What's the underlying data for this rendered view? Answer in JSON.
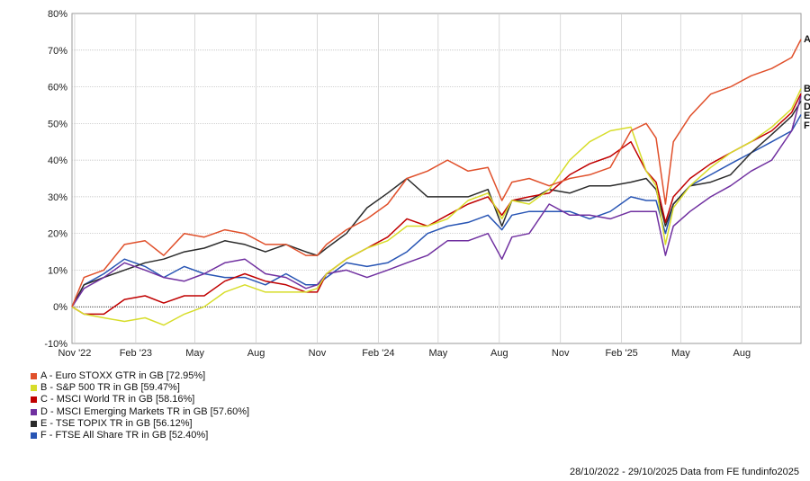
{
  "chart_data": {
    "type": "line",
    "title": "",
    "xlabel": "",
    "ylabel": "",
    "ylim": [
      -10,
      80
    ],
    "y_ticks": [
      -10,
      0,
      10,
      20,
      30,
      40,
      50,
      60,
      70,
      80
    ],
    "y_tick_labels": [
      "-10%",
      "0%",
      "10%",
      "20%",
      "30%",
      "40%",
      "50%",
      "60%",
      "70%",
      "80%"
    ],
    "x_range": [
      "2022-10-28",
      "2025-10-29"
    ],
    "x_ticks": [
      {
        "date": "2022-11-01",
        "label": "Nov '22"
      },
      {
        "date": "2023-02-01",
        "label": "Feb '23"
      },
      {
        "date": "2023-05-01",
        "label": "May"
      },
      {
        "date": "2023-08-01",
        "label": "Aug"
      },
      {
        "date": "2023-11-01",
        "label": "Nov"
      },
      {
        "date": "2024-02-01",
        "label": "Feb '24"
      },
      {
        "date": "2024-05-01",
        "label": "May"
      },
      {
        "date": "2024-08-01",
        "label": "Aug"
      },
      {
        "date": "2024-11-01",
        "label": "Nov"
      },
      {
        "date": "2025-02-01",
        "label": "Feb '25"
      },
      {
        "date": "2025-05-01",
        "label": "May"
      },
      {
        "date": "2025-08-01",
        "label": "Aug"
      }
    ],
    "grid": true,
    "zero_line": "dotted",
    "legend_position": "bottom-left",
    "series": [
      {
        "key": "A",
        "name": "A - Euro STOXX GTR in GB [72.95%]",
        "color": "#e0502b",
        "points": [
          [
            "2022-10-28",
            0
          ],
          [
            "2022-11-15",
            8
          ],
          [
            "2022-12-15",
            10
          ],
          [
            "2023-01-15",
            17
          ],
          [
            "2023-02-15",
            18
          ],
          [
            "2023-03-15",
            14
          ],
          [
            "2023-04-15",
            20
          ],
          [
            "2023-05-15",
            19
          ],
          [
            "2023-06-15",
            21
          ],
          [
            "2023-07-15",
            20
          ],
          [
            "2023-08-15",
            17
          ],
          [
            "2023-09-15",
            17
          ],
          [
            "2023-10-15",
            14
          ],
          [
            "2023-11-01",
            14
          ],
          [
            "2023-11-15",
            17
          ],
          [
            "2023-12-15",
            21
          ],
          [
            "2024-01-15",
            24
          ],
          [
            "2024-02-15",
            28
          ],
          [
            "2024-03-15",
            35
          ],
          [
            "2024-04-15",
            37
          ],
          [
            "2024-05-15",
            40
          ],
          [
            "2024-06-15",
            37
          ],
          [
            "2024-07-15",
            38
          ],
          [
            "2024-08-05",
            29
          ],
          [
            "2024-08-20",
            34
          ],
          [
            "2024-09-15",
            35
          ],
          [
            "2024-10-15",
            33
          ],
          [
            "2024-11-15",
            35
          ],
          [
            "2024-12-15",
            36
          ],
          [
            "2025-01-15",
            38
          ],
          [
            "2025-02-15",
            48
          ],
          [
            "2025-03-10",
            50
          ],
          [
            "2025-03-25",
            46
          ],
          [
            "2025-04-08",
            28
          ],
          [
            "2025-04-20",
            45
          ],
          [
            "2025-05-15",
            52
          ],
          [
            "2025-06-15",
            58
          ],
          [
            "2025-07-15",
            60
          ],
          [
            "2025-08-15",
            63
          ],
          [
            "2025-09-15",
            65
          ],
          [
            "2025-10-15",
            68
          ],
          [
            "2025-10-29",
            72.95
          ]
        ]
      },
      {
        "key": "B",
        "name": "B - S&P 500 TR in GB [59.47%]",
        "color": "#d7dd2a",
        "points": [
          [
            "2022-10-28",
            0
          ],
          [
            "2022-11-15",
            -2
          ],
          [
            "2022-12-15",
            -3
          ],
          [
            "2023-01-15",
            -4
          ],
          [
            "2023-02-15",
            -3
          ],
          [
            "2023-03-15",
            -5
          ],
          [
            "2023-04-15",
            -2
          ],
          [
            "2023-05-15",
            0
          ],
          [
            "2023-06-15",
            4
          ],
          [
            "2023-07-15",
            6
          ],
          [
            "2023-08-15",
            4
          ],
          [
            "2023-09-15",
            4
          ],
          [
            "2023-10-15",
            4
          ],
          [
            "2023-11-01",
            5
          ],
          [
            "2023-11-15",
            9
          ],
          [
            "2023-12-15",
            13
          ],
          [
            "2024-01-15",
            16
          ],
          [
            "2024-02-15",
            18
          ],
          [
            "2024-03-15",
            22
          ],
          [
            "2024-04-15",
            22
          ],
          [
            "2024-05-15",
            24
          ],
          [
            "2024-06-15",
            29
          ],
          [
            "2024-07-15",
            31
          ],
          [
            "2024-08-05",
            24
          ],
          [
            "2024-08-20",
            29
          ],
          [
            "2024-09-15",
            28
          ],
          [
            "2024-10-15",
            32
          ],
          [
            "2024-11-15",
            40
          ],
          [
            "2024-12-15",
            45
          ],
          [
            "2025-01-15",
            48
          ],
          [
            "2025-02-15",
            49
          ],
          [
            "2025-03-10",
            37
          ],
          [
            "2025-03-25",
            33
          ],
          [
            "2025-04-08",
            17
          ],
          [
            "2025-04-20",
            27
          ],
          [
            "2025-05-15",
            33
          ],
          [
            "2025-06-15",
            38
          ],
          [
            "2025-07-15",
            42
          ],
          [
            "2025-08-15",
            45
          ],
          [
            "2025-09-15",
            49
          ],
          [
            "2025-10-15",
            54
          ],
          [
            "2025-10-29",
            59.47
          ]
        ]
      },
      {
        "key": "C",
        "name": "C - MSCI World TR in GB [58.16%]",
        "color": "#c00000",
        "points": [
          [
            "2022-10-28",
            0
          ],
          [
            "2022-11-15",
            -2
          ],
          [
            "2022-12-15",
            -2
          ],
          [
            "2023-01-15",
            2
          ],
          [
            "2023-02-15",
            3
          ],
          [
            "2023-03-15",
            1
          ],
          [
            "2023-04-15",
            3
          ],
          [
            "2023-05-15",
            3
          ],
          [
            "2023-06-15",
            7
          ],
          [
            "2023-07-15",
            9
          ],
          [
            "2023-08-15",
            7
          ],
          [
            "2023-09-15",
            6
          ],
          [
            "2023-10-15",
            4
          ],
          [
            "2023-11-01",
            4
          ],
          [
            "2023-11-15",
            9
          ],
          [
            "2023-12-15",
            13
          ],
          [
            "2024-01-15",
            16
          ],
          [
            "2024-02-15",
            19
          ],
          [
            "2024-03-15",
            24
          ],
          [
            "2024-04-15",
            22
          ],
          [
            "2024-05-15",
            25
          ],
          [
            "2024-06-15",
            28
          ],
          [
            "2024-07-15",
            30
          ],
          [
            "2024-08-05",
            25
          ],
          [
            "2024-08-20",
            29
          ],
          [
            "2024-09-15",
            30
          ],
          [
            "2024-10-15",
            31
          ],
          [
            "2024-11-15",
            36
          ],
          [
            "2024-12-15",
            39
          ],
          [
            "2025-01-15",
            41
          ],
          [
            "2025-02-15",
            45
          ],
          [
            "2025-03-10",
            37
          ],
          [
            "2025-03-25",
            34
          ],
          [
            "2025-04-08",
            23
          ],
          [
            "2025-04-20",
            30
          ],
          [
            "2025-05-15",
            35
          ],
          [
            "2025-06-15",
            39
          ],
          [
            "2025-07-15",
            42
          ],
          [
            "2025-08-15",
            45
          ],
          [
            "2025-09-15",
            48
          ],
          [
            "2025-10-15",
            53
          ],
          [
            "2025-10-29",
            58.16
          ]
        ]
      },
      {
        "key": "D",
        "name": "D - MSCI Emerging Markets TR in GB [57.60%]",
        "color": "#7030a0",
        "points": [
          [
            "2022-10-28",
            0
          ],
          [
            "2022-11-15",
            5
          ],
          [
            "2022-12-15",
            8
          ],
          [
            "2023-01-15",
            12
          ],
          [
            "2023-02-15",
            10
          ],
          [
            "2023-03-15",
            8
          ],
          [
            "2023-04-15",
            7
          ],
          [
            "2023-05-15",
            9
          ],
          [
            "2023-06-15",
            12
          ],
          [
            "2023-07-15",
            13
          ],
          [
            "2023-08-15",
            9
          ],
          [
            "2023-09-15",
            8
          ],
          [
            "2023-10-15",
            5
          ],
          [
            "2023-11-01",
            6
          ],
          [
            "2023-11-15",
            9
          ],
          [
            "2023-12-15",
            10
          ],
          [
            "2024-01-15",
            8
          ],
          [
            "2024-02-15",
            10
          ],
          [
            "2024-03-15",
            12
          ],
          [
            "2024-04-15",
            14
          ],
          [
            "2024-05-15",
            18
          ],
          [
            "2024-06-15",
            18
          ],
          [
            "2024-07-15",
            20
          ],
          [
            "2024-08-05",
            13
          ],
          [
            "2024-08-20",
            19
          ],
          [
            "2024-09-15",
            20
          ],
          [
            "2024-10-15",
            28
          ],
          [
            "2024-11-15",
            25
          ],
          [
            "2024-12-15",
            25
          ],
          [
            "2025-01-15",
            24
          ],
          [
            "2025-02-15",
            26
          ],
          [
            "2025-03-10",
            26
          ],
          [
            "2025-03-25",
            26
          ],
          [
            "2025-04-08",
            14
          ],
          [
            "2025-04-20",
            22
          ],
          [
            "2025-05-15",
            26
          ],
          [
            "2025-06-15",
            30
          ],
          [
            "2025-07-15",
            33
          ],
          [
            "2025-08-15",
            37
          ],
          [
            "2025-09-15",
            40
          ],
          [
            "2025-10-15",
            48
          ],
          [
            "2025-10-29",
            57.6
          ]
        ]
      },
      {
        "key": "E",
        "name": "E - TSE TOPIX TR in GB [56.12%]",
        "color": "#2b2b2b",
        "points": [
          [
            "2022-10-28",
            0
          ],
          [
            "2022-11-15",
            6
          ],
          [
            "2022-12-15",
            8
          ],
          [
            "2023-01-15",
            10
          ],
          [
            "2023-02-15",
            12
          ],
          [
            "2023-03-15",
            13
          ],
          [
            "2023-04-15",
            15
          ],
          [
            "2023-05-15",
            16
          ],
          [
            "2023-06-15",
            18
          ],
          [
            "2023-07-15",
            17
          ],
          [
            "2023-08-15",
            15
          ],
          [
            "2023-09-15",
            17
          ],
          [
            "2023-10-15",
            15
          ],
          [
            "2023-11-01",
            14
          ],
          [
            "2023-11-15",
            16
          ],
          [
            "2023-12-15",
            20
          ],
          [
            "2024-01-15",
            27
          ],
          [
            "2024-02-15",
            31
          ],
          [
            "2024-03-15",
            35
          ],
          [
            "2024-04-15",
            30
          ],
          [
            "2024-05-15",
            30
          ],
          [
            "2024-06-15",
            30
          ],
          [
            "2024-07-15",
            32
          ],
          [
            "2024-08-05",
            22
          ],
          [
            "2024-08-20",
            29
          ],
          [
            "2024-09-15",
            29
          ],
          [
            "2024-10-15",
            32
          ],
          [
            "2024-11-15",
            31
          ],
          [
            "2024-12-15",
            33
          ],
          [
            "2025-01-15",
            33
          ],
          [
            "2025-02-15",
            34
          ],
          [
            "2025-03-10",
            35
          ],
          [
            "2025-03-25",
            32
          ],
          [
            "2025-04-08",
            22
          ],
          [
            "2025-04-20",
            28
          ],
          [
            "2025-05-15",
            33
          ],
          [
            "2025-06-15",
            34
          ],
          [
            "2025-07-15",
            36
          ],
          [
            "2025-08-15",
            42
          ],
          [
            "2025-09-15",
            47
          ],
          [
            "2025-10-15",
            52
          ],
          [
            "2025-10-29",
            56.12
          ]
        ]
      },
      {
        "key": "F",
        "name": "F - FTSE All Share TR in GB [52.40%]",
        "color": "#2855b4",
        "points": [
          [
            "2022-10-28",
            0
          ],
          [
            "2022-11-15",
            6
          ],
          [
            "2022-12-15",
            9
          ],
          [
            "2023-01-15",
            13
          ],
          [
            "2023-02-15",
            11
          ],
          [
            "2023-03-15",
            8
          ],
          [
            "2023-04-15",
            11
          ],
          [
            "2023-05-15",
            9
          ],
          [
            "2023-06-15",
            8
          ],
          [
            "2023-07-15",
            8
          ],
          [
            "2023-08-15",
            6
          ],
          [
            "2023-09-15",
            9
          ],
          [
            "2023-10-15",
            6
          ],
          [
            "2023-11-01",
            6
          ],
          [
            "2023-11-15",
            8
          ],
          [
            "2023-12-15",
            12
          ],
          [
            "2024-01-15",
            11
          ],
          [
            "2024-02-15",
            12
          ],
          [
            "2024-03-15",
            15
          ],
          [
            "2024-04-15",
            20
          ],
          [
            "2024-05-15",
            22
          ],
          [
            "2024-06-15",
            23
          ],
          [
            "2024-07-15",
            25
          ],
          [
            "2024-08-05",
            21
          ],
          [
            "2024-08-20",
            25
          ],
          [
            "2024-09-15",
            26
          ],
          [
            "2024-10-15",
            26
          ],
          [
            "2024-11-15",
            26
          ],
          [
            "2024-12-15",
            24
          ],
          [
            "2025-01-15",
            26
          ],
          [
            "2025-02-15",
            30
          ],
          [
            "2025-03-10",
            29
          ],
          [
            "2025-03-25",
            29
          ],
          [
            "2025-04-08",
            20
          ],
          [
            "2025-04-20",
            28
          ],
          [
            "2025-05-15",
            33
          ],
          [
            "2025-06-15",
            36
          ],
          [
            "2025-07-15",
            39
          ],
          [
            "2025-08-15",
            42
          ],
          [
            "2025-09-15",
            45
          ],
          [
            "2025-10-15",
            48
          ],
          [
            "2025-10-29",
            52.4
          ]
        ]
      }
    ]
  },
  "footer": {
    "text": "28/10/2022 - 29/10/2025 Data from FE fundinfo2025"
  }
}
